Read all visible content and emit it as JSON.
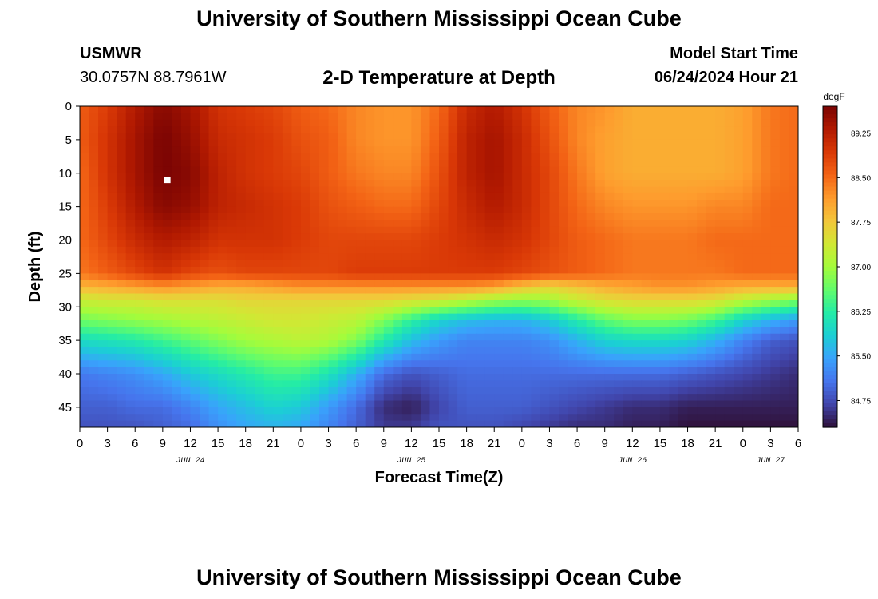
{
  "header": {
    "title": "University of Southern Mississippi Ocean Cube",
    "station_id": "USMWR",
    "coords": "30.0757N  88.7961W",
    "subtitle": "2-D Temperature at Depth",
    "start_label": "Model Start Time",
    "start_value": "06/24/2024 Hour 21"
  },
  "footer": {
    "title": "University of Southern Mississippi Ocean Cube"
  },
  "chart_data": {
    "type": "heatmap",
    "title": "2-D Temperature at Depth",
    "xlabel": "Forecast Time(Z)",
    "ylabel": "Depth (ft)",
    "x_unit": "hours since 2024-06-24 00Z",
    "xlim": [
      0,
      78
    ],
    "ylim": [
      0,
      48
    ],
    "x_tick_labels": [
      "0",
      "3",
      "6",
      "9",
      "12",
      "15",
      "18",
      "21",
      "0",
      "3",
      "6",
      "9",
      "12",
      "15",
      "18",
      "21",
      "0",
      "3",
      "6",
      "9",
      "12",
      "15",
      "18",
      "21",
      "0",
      "3",
      "6"
    ],
    "y_ticks": [
      0,
      5,
      10,
      15,
      20,
      25,
      30,
      35,
      40,
      45
    ],
    "date_labels": [
      {
        "hour": 12,
        "label": "JUN 24"
      },
      {
        "hour": 36,
        "label": "JUN 25"
      },
      {
        "hour": 60,
        "label": "JUN 26"
      },
      {
        "hour": 75,
        "label": "JUN 27"
      }
    ],
    "colorbar": {
      "unit": "degF",
      "min": 84.3,
      "max": 89.7,
      "tick_labels": [
        "84.75",
        "85.50",
        "86.25",
        "87.00",
        "87.75",
        "88.50",
        "89.25"
      ],
      "colormap": [
        "#30123b",
        "#4145ab",
        "#4675ed",
        "#39a2fc",
        "#1bcfd4",
        "#24eca6",
        "#61fc6c",
        "#a4fc3b",
        "#d1e834",
        "#f3c63a",
        "#fe9b2d",
        "#f36315",
        "#d93806",
        "#b11901",
        "#7a0403"
      ]
    },
    "marker": {
      "hour": 9.5,
      "depth": 11,
      "color": "#ffffff"
    },
    "rows_depth_ft": [
      0,
      5,
      10,
      15,
      20,
      25,
      27,
      29,
      32,
      35,
      40,
      45,
      48
    ],
    "x_samples_hour": [
      0,
      3,
      6,
      9,
      12,
      15,
      18,
      21,
      24,
      27,
      30,
      33,
      36,
      39,
      42,
      45,
      48,
      51,
      54,
      57,
      60,
      63,
      66,
      69,
      72,
      75,
      78
    ],
    "temperature_degF": [
      [
        88.6,
        88.9,
        89.3,
        89.6,
        89.4,
        89.0,
        88.9,
        88.8,
        88.6,
        88.5,
        88.3,
        88.2,
        88.2,
        88.5,
        89.1,
        89.3,
        89.0,
        88.6,
        88.3,
        88.2,
        88.0,
        88.0,
        88.0,
        88.0,
        88.1,
        88.4,
        88.5
      ],
      [
        88.6,
        89.0,
        89.4,
        89.7,
        89.5,
        89.1,
        89.0,
        88.9,
        88.7,
        88.6,
        88.3,
        88.2,
        88.2,
        88.6,
        89.2,
        89.4,
        89.1,
        88.7,
        88.3,
        88.1,
        88.0,
        88.0,
        88.0,
        88.0,
        88.1,
        88.4,
        88.5
      ],
      [
        88.5,
        89.0,
        89.4,
        89.7,
        89.6,
        89.2,
        89.0,
        88.9,
        88.8,
        88.6,
        88.4,
        88.3,
        88.3,
        88.7,
        89.2,
        89.4,
        89.1,
        88.8,
        88.4,
        88.1,
        88.0,
        88.0,
        88.0,
        88.0,
        88.1,
        88.4,
        88.5
      ],
      [
        88.5,
        88.9,
        89.3,
        89.6,
        89.5,
        89.2,
        89.1,
        89.0,
        88.9,
        88.7,
        88.6,
        88.5,
        88.5,
        88.8,
        89.1,
        89.3,
        89.1,
        88.8,
        88.5,
        88.3,
        88.2,
        88.2,
        88.2,
        88.3,
        88.3,
        88.5,
        88.5
      ],
      [
        88.5,
        88.8,
        89.1,
        89.3,
        89.2,
        89.0,
        89.0,
        89.0,
        88.9,
        88.8,
        88.8,
        88.8,
        88.8,
        88.9,
        89.0,
        89.1,
        89.0,
        88.8,
        88.6,
        88.5,
        88.4,
        88.4,
        88.4,
        88.5,
        88.5,
        88.5,
        88.5
      ],
      [
        88.4,
        88.6,
        88.8,
        89.0,
        88.8,
        88.7,
        88.8,
        88.8,
        88.8,
        88.8,
        88.9,
        88.9,
        88.9,
        88.9,
        88.9,
        88.9,
        88.8,
        88.7,
        88.6,
        88.5,
        88.4,
        88.4,
        88.4,
        88.4,
        88.5,
        88.5,
        88.5
      ],
      [
        87.9,
        88.0,
        88.1,
        88.2,
        88.1,
        88.0,
        88.0,
        88.1,
        88.2,
        88.2,
        88.2,
        88.2,
        88.2,
        88.2,
        88.2,
        88.1,
        87.8,
        87.6,
        87.8,
        88.0,
        88.1,
        88.2,
        88.2,
        88.1,
        88.0,
        88.0,
        88.0
      ],
      [
        87.3,
        87.4,
        87.4,
        87.5,
        87.5,
        87.5,
        87.6,
        87.6,
        87.6,
        87.6,
        87.6,
        87.6,
        87.5,
        87.4,
        87.2,
        87.0,
        86.9,
        87.0,
        87.3,
        87.5,
        87.6,
        87.6,
        87.6,
        87.5,
        87.2,
        87.0,
        86.8
      ],
      [
        86.7,
        86.8,
        86.9,
        87.0,
        87.1,
        87.2,
        87.3,
        87.4,
        87.4,
        87.3,
        87.2,
        86.8,
        86.3,
        85.9,
        85.7,
        85.6,
        85.6,
        85.8,
        86.2,
        86.6,
        86.8,
        86.8,
        86.7,
        86.4,
        85.9,
        85.6,
        85.4
      ],
      [
        86.0,
        86.1,
        86.2,
        86.4,
        86.6,
        86.8,
        87.0,
        87.1,
        87.2,
        87.1,
        86.8,
        86.2,
        85.7,
        85.4,
        85.2,
        85.2,
        85.2,
        85.3,
        85.6,
        85.9,
        86.0,
        86.0,
        85.9,
        85.6,
        85.2,
        84.9,
        84.8
      ],
      [
        85.1,
        85.2,
        85.3,
        85.5,
        85.8,
        86.0,
        86.2,
        86.4,
        86.4,
        86.1,
        85.6,
        85.0,
        84.8,
        84.9,
        85.0,
        85.0,
        85.0,
        85.0,
        85.0,
        85.0,
        85.0,
        85.0,
        84.9,
        84.8,
        84.7,
        84.6,
        84.5
      ],
      [
        84.9,
        84.9,
        85.0,
        85.0,
        85.2,
        85.5,
        85.7,
        85.9,
        85.8,
        85.4,
        85.0,
        84.5,
        84.4,
        84.7,
        84.9,
        84.9,
        84.9,
        84.8,
        84.7,
        84.6,
        84.5,
        84.5,
        84.4,
        84.4,
        84.4,
        84.4,
        84.4
      ],
      [
        84.8,
        84.8,
        84.8,
        84.9,
        85.0,
        85.3,
        85.5,
        85.6,
        85.5,
        85.2,
        84.9,
        84.6,
        84.6,
        84.8,
        84.8,
        84.8,
        84.7,
        84.6,
        84.5,
        84.5,
        84.4,
        84.4,
        84.3,
        84.3,
        84.3,
        84.3,
        84.3
      ]
    ]
  }
}
